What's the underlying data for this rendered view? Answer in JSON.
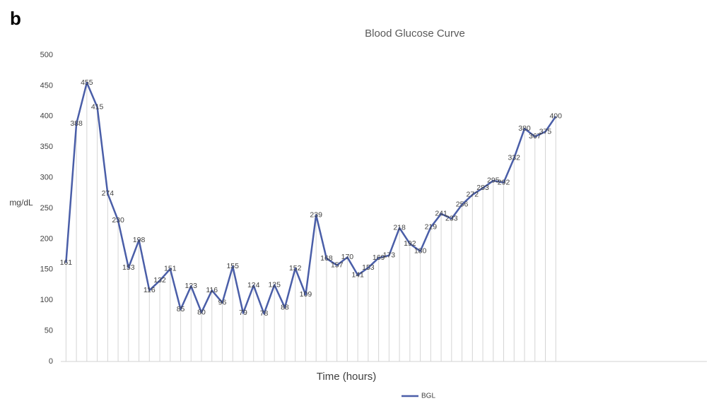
{
  "panel_label": "b",
  "chart_data": {
    "type": "line",
    "title": "Blood Glucose Curve",
    "ylabel": "mg/dL",
    "xlabel": "Time (hours)",
    "categories": [
      null,
      null,
      null,
      null,
      null,
      null,
      null,
      null,
      null,
      null,
      null,
      null,
      null,
      null,
      null,
      null,
      null,
      null,
      null,
      null,
      null,
      null,
      null,
      null,
      null,
      null,
      null,
      null,
      null,
      null,
      null,
      null,
      null,
      null,
      null,
      null,
      null,
      null,
      null,
      null,
      null,
      null,
      null,
      null,
      null,
      null,
      null,
      null,
      null,
      null,
      null,
      null,
      null,
      null,
      null,
      null,
      null,
      null,
      null,
      null,
      null,
      null
    ],
    "series": [
      {
        "name": "BGL",
        "color": "#4a5ea8",
        "values": [
          161,
          388,
          455,
          415,
          274,
          230,
          153,
          198,
          116,
          132,
          151,
          85,
          123,
          80,
          116,
          96,
          155,
          79,
          124,
          78,
          125,
          88,
          152,
          109,
          239,
          168,
          157,
          170,
          141,
          153,
          169,
          173,
          218,
          192,
          180,
          219,
          241,
          233,
          256,
          272,
          283,
          295,
          292,
          332,
          380,
          367,
          375,
          400,
          null,
          null,
          null,
          null,
          null,
          null,
          null,
          null,
          null,
          null,
          null,
          null,
          null,
          null
        ]
      }
    ],
    "ylim": [
      0,
      500
    ],
    "yticks": [
      0,
      50,
      100,
      150,
      200,
      250,
      300,
      350,
      400,
      450,
      500
    ],
    "drop_lines": true,
    "legend": "bottom"
  }
}
